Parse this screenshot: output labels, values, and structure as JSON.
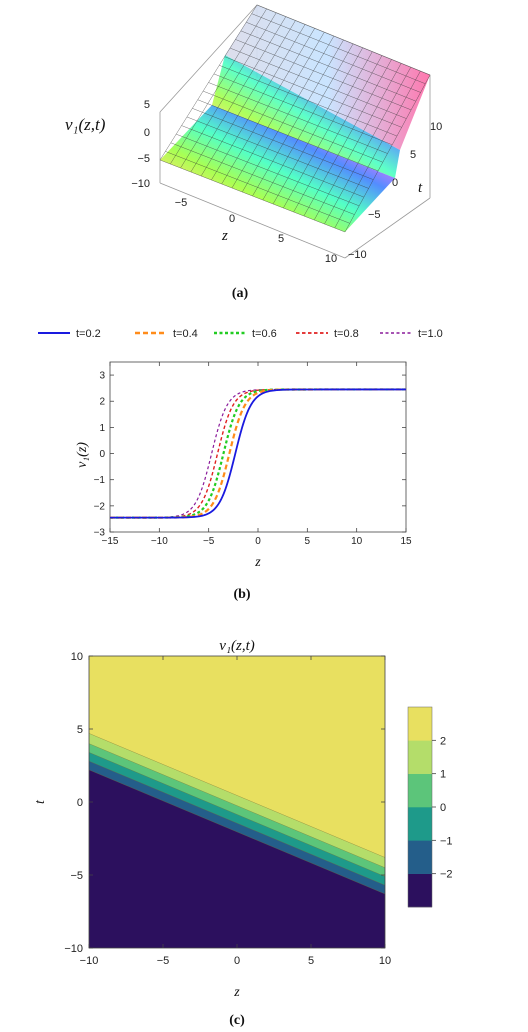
{
  "panel_a": {
    "ylabel": "v₁(z,t)",
    "xlabel": "z",
    "tlabel": "t",
    "caption": "(a)"
  },
  "panel_b": {
    "ylabel": "v₁(z)",
    "xlabel": "z",
    "caption": "(b)"
  },
  "panel_c": {
    "title": "v₁(z,t)",
    "xlabel": "z",
    "ylabel": "t",
    "caption": "(c)"
  },
  "chart_data": [
    {
      "panel": "a",
      "type": "surface3d",
      "xlabel": "z",
      "ylabel": "t",
      "zlabel": "v₁(z,t)",
      "z_axis_ticks": [
        -10,
        -5,
        0,
        5,
        10
      ],
      "t_axis_ticks": [
        -10,
        -5,
        0,
        5,
        10
      ],
      "v_axis_ticks": [
        -5,
        0,
        5
      ],
      "colors": [
        "#ff8080",
        "#ffee60",
        "#88ff40",
        "#40ffe0",
        "#4060ff",
        "#ff60ff",
        "#ff4060"
      ]
    },
    {
      "panel": "b",
      "type": "line",
      "xlabel": "z",
      "ylabel": "v₁(z)",
      "xlim": [
        -15,
        15
      ],
      "ylim": [
        -3,
        3.5
      ],
      "xticks": [
        -15,
        -10,
        -5,
        0,
        5,
        10,
        15
      ],
      "yticks": [
        -3,
        -2,
        -1,
        0,
        1,
        2,
        3
      ],
      "legend_position": "top",
      "series": [
        {
          "name": "t=0.2",
          "color": "#1a1adf",
          "dash": "solid",
          "center": -2.3
        },
        {
          "name": "t=0.4",
          "color": "#ff8c1a",
          "dash": "dashed",
          "center": -2.9
        },
        {
          "name": "t=0.6",
          "color": "#22cc22",
          "dash": "dashed",
          "center": -3.5
        },
        {
          "name": "t=0.8",
          "color": "#e02020",
          "dash": "dashed",
          "center": -4.1
        },
        {
          "name": "t=1.0",
          "color": "#8a1a9a",
          "dash": "dashed",
          "center": -4.7
        }
      ],
      "amplitude": 2.45,
      "width": 1.6
    },
    {
      "panel": "c",
      "type": "contour",
      "xlabel": "z",
      "ylabel": "t",
      "xlim": [
        -10,
        10
      ],
      "ylim": [
        -10,
        10
      ],
      "xticks": [
        -10,
        -5,
        0,
        5,
        10
      ],
      "yticks": [
        -10,
        -5,
        0,
        5,
        10
      ],
      "colorbar_ticks": [
        2,
        1,
        0,
        -1,
        -2
      ],
      "colorbar_colors": [
        "#2c105e",
        "#245e8a",
        "#1e9a8a",
        "#5cc57a",
        "#b4dd6a",
        "#e8e060"
      ],
      "front_line": {
        "z": [
          -10,
          10
        ],
        "t": [
          4.7,
          -3.8
        ]
      },
      "band_offsets": [
        0,
        -0.7,
        -1.3,
        -1.9,
        -2.5
      ]
    }
  ]
}
